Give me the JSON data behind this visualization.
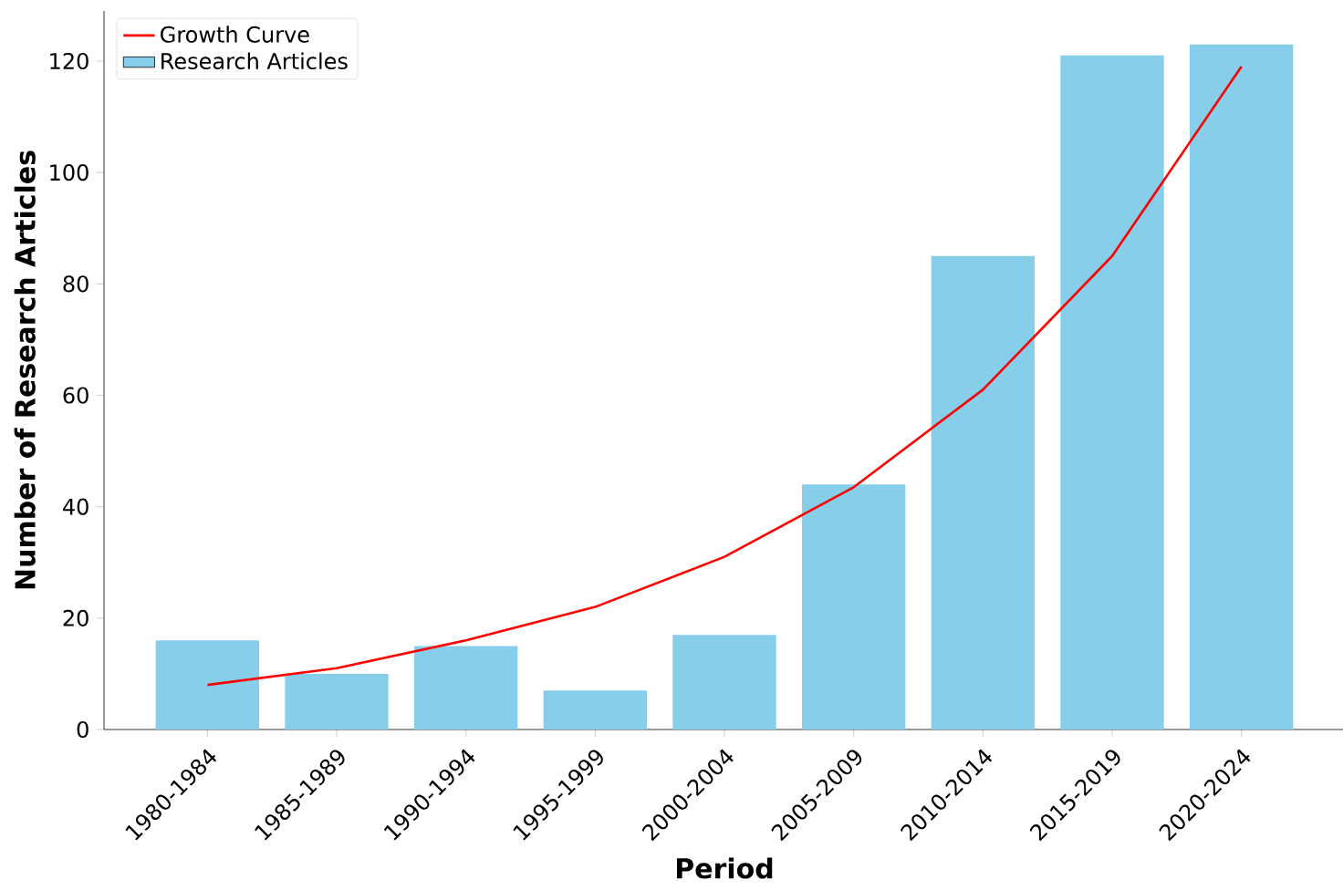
{
  "chart_data": {
    "type": "bar",
    "xlabel": "Period",
    "ylabel": "Number of Research Articles",
    "categories": [
      "1980-1984",
      "1985-1989",
      "1990-1994",
      "1995-1999",
      "2000-2004",
      "2005-2009",
      "2010-2014",
      "2015-2019",
      "2020-2024"
    ],
    "series": [
      {
        "name": "Growth Curve",
        "type": "line",
        "color": "#ff0000",
        "values": [
          8,
          11,
          16,
          22,
          31,
          43.5,
          61,
          85,
          119
        ]
      },
      {
        "name": "Research Articles",
        "color": "#87ceeb",
        "values": [
          16,
          10,
          15,
          7,
          17,
          44,
          85,
          121,
          123
        ]
      }
    ],
    "ylim": [
      0,
      129
    ],
    "yticks": [
      0,
      20,
      40,
      60,
      80,
      100,
      120
    ],
    "legend": "top left",
    "grid": false
  }
}
